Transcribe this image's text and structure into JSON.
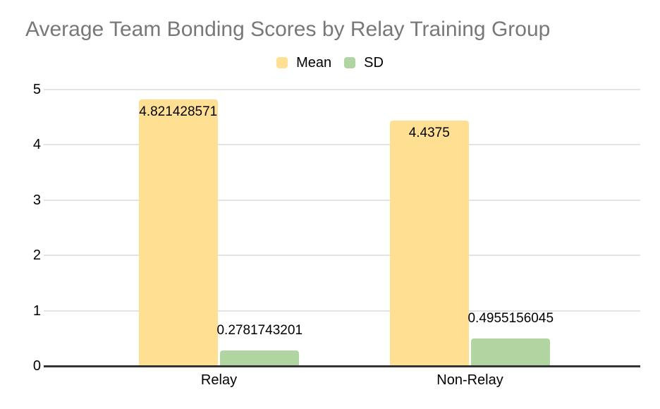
{
  "chart_data": {
    "type": "bar",
    "title": "Average Team Bonding Scores by Relay Training Group",
    "categories": [
      "Relay",
      "Non-Relay"
    ],
    "series": [
      {
        "name": "Mean",
        "color": "#FFE092",
        "values": [
          4.821428571,
          4.4375
        ],
        "labels": [
          "4.821428571",
          "4.4375"
        ]
      },
      {
        "name": "SD",
        "color": "#B1D5A0",
        "values": [
          0.2781743201,
          0.4955156045
        ],
        "labels": [
          "0.2781743201",
          "0.4955156045"
        ]
      }
    ],
    "xlabel": "",
    "ylabel": "",
    "y_axis": {
      "min": 0,
      "max": 5,
      "ticks": [
        0,
        1,
        2,
        3,
        4,
        5
      ]
    },
    "grid": true,
    "legend_position": "top-center",
    "colors": {
      "title_text": "#787878",
      "label_text": "#000000",
      "gridline": "#E3E3E3",
      "axis_line": "#333333",
      "background": "#FFFFFF"
    }
  }
}
